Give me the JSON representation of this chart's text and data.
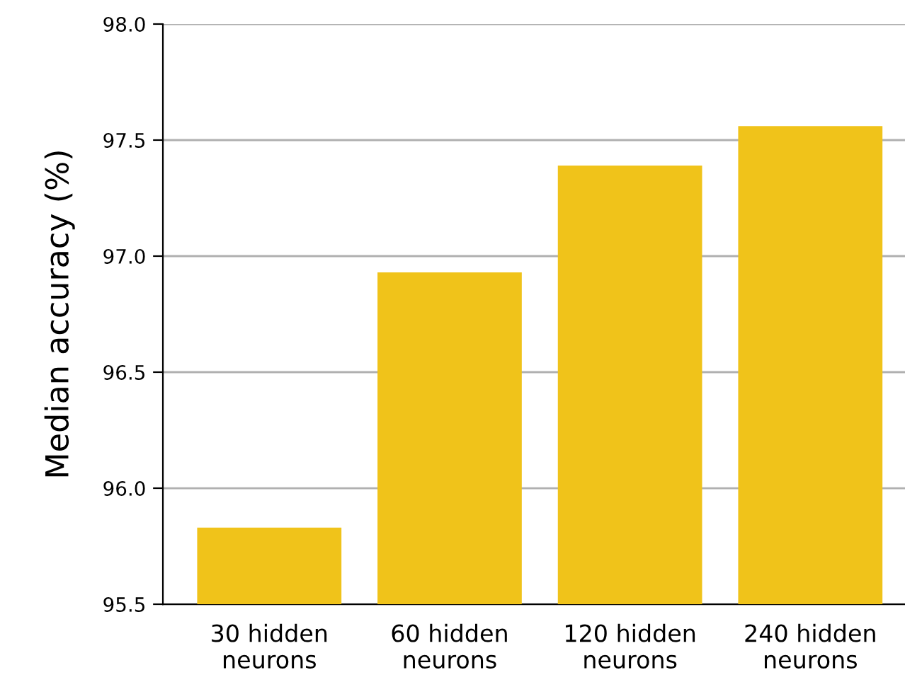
{
  "chart_data": {
    "type": "bar",
    "ylabel": "Median accuracy (%)",
    "categories": [
      "30 hidden\nneurons",
      "60 hidden\nneurons",
      "120 hidden\nneurons",
      "240 hidden\nneurons"
    ],
    "values": [
      95.83,
      96.93,
      97.39,
      97.56
    ],
    "color": "#f0c31a",
    "ylim": [
      95.5,
      98.0
    ],
    "yticks": [
      {
        "value": 95.5,
        "label": "95.5"
      },
      {
        "value": 96.0,
        "label": "96.0"
      },
      {
        "value": 96.5,
        "label": "96.5"
      },
      {
        "value": 97.0,
        "label": "97.0"
      },
      {
        "value": 97.5,
        "label": "97.5"
      },
      {
        "value": 98.0,
        "label": "98.0"
      }
    ],
    "grid": "y",
    "legend": false
  }
}
